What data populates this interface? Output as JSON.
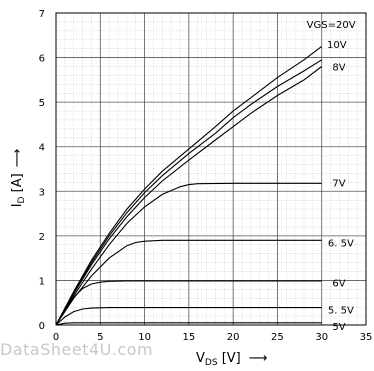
{
  "chart_data": {
    "type": "line",
    "xlim": [
      0,
      35
    ],
    "ylim": [
      0,
      7
    ],
    "x_ticks": [
      "0",
      "5",
      "10",
      "15",
      "20",
      "25",
      "30",
      "35"
    ],
    "y_ticks": [
      "0",
      "1",
      "2",
      "3",
      "4",
      "5",
      "6",
      "7"
    ],
    "xlabel": {
      "main": "V",
      "sub": "DS",
      "unit": " [V]",
      "arrow": "⟶"
    },
    "ylabel": {
      "main": "I",
      "sub": "D",
      "unit": " [A]",
      "arrow": "⟶"
    },
    "grid": true,
    "series": [
      {
        "name": "VGS=20V",
        "x": [
          0,
          2,
          4,
          6,
          8,
          10,
          12,
          15,
          18,
          20,
          22,
          25,
          28,
          30
        ],
        "y": [
          0,
          0.75,
          1.45,
          2.05,
          2.6,
          3.05,
          3.45,
          3.95,
          4.45,
          4.8,
          5.1,
          5.55,
          5.95,
          6.25
        ]
      },
      {
        "name": "10V",
        "x": [
          0,
          2,
          4,
          6,
          8,
          10,
          12,
          15,
          18,
          20,
          22,
          25,
          28,
          30
        ],
        "y": [
          0,
          0.72,
          1.4,
          2.0,
          2.52,
          2.97,
          3.35,
          3.85,
          4.3,
          4.65,
          4.95,
          5.35,
          5.7,
          5.95
        ]
      },
      {
        "name": "8V",
        "x": [
          0,
          2,
          4,
          6,
          8,
          10,
          12,
          15,
          18,
          20,
          22,
          25,
          28,
          30
        ],
        "y": [
          0,
          0.7,
          1.35,
          1.93,
          2.43,
          2.86,
          3.23,
          3.7,
          4.15,
          4.45,
          4.75,
          5.15,
          5.5,
          5.8
        ]
      },
      {
        "name": "7V",
        "x": [
          0,
          2,
          4,
          6,
          8,
          10,
          12,
          14,
          15,
          16,
          20,
          25,
          30
        ],
        "y": [
          0,
          0.65,
          1.25,
          1.8,
          2.28,
          2.65,
          2.93,
          3.1,
          3.15,
          3.17,
          3.18,
          3.18,
          3.18
        ]
      },
      {
        "name": "6.5V",
        "x": [
          0,
          2,
          4,
          6,
          8,
          9,
          10,
          12,
          15,
          20,
          25,
          30
        ],
        "y": [
          0,
          0.6,
          1.1,
          1.5,
          1.78,
          1.85,
          1.88,
          1.9,
          1.9,
          1.9,
          1.9,
          1.9
        ]
      },
      {
        "name": "6V",
        "x": [
          0,
          1,
          2,
          3,
          4,
          5,
          6,
          8,
          10,
          15,
          20,
          25,
          30
        ],
        "y": [
          0,
          0.35,
          0.62,
          0.82,
          0.92,
          0.96,
          0.98,
          0.99,
          0.99,
          0.99,
          0.99,
          0.99,
          0.99
        ]
      },
      {
        "name": "5.5V",
        "x": [
          0,
          1,
          2,
          3,
          4,
          6,
          10,
          15,
          20,
          25,
          30
        ],
        "y": [
          0,
          0.18,
          0.3,
          0.36,
          0.38,
          0.39,
          0.39,
          0.39,
          0.39,
          0.39,
          0.39
        ]
      },
      {
        "name": "5V",
        "x": [
          0,
          1,
          2,
          4,
          10,
          20,
          30
        ],
        "y": [
          0,
          0.04,
          0.05,
          0.05,
          0.05,
          0.05,
          0.05
        ]
      }
    ],
    "labels": [
      {
        "text": "VGS=20V",
        "x": 28.3,
        "y": 6.75
      },
      {
        "text": "10V",
        "x": 30.6,
        "y": 6.3
      },
      {
        "text": "8V",
        "x": 31.2,
        "y": 5.8
      },
      {
        "text": "7V",
        "x": 31.2,
        "y": 3.2
      },
      {
        "text": "6. 5V",
        "x": 30.7,
        "y": 1.85
      },
      {
        "text": "6V",
        "x": 31.2,
        "y": 0.95
      },
      {
        "text": "5. 5V",
        "x": 30.7,
        "y": 0.35
      },
      {
        "text": "5V",
        "x": 31.2,
        "y": -0.02
      }
    ]
  },
  "watermark": "DataSheet4U.com"
}
